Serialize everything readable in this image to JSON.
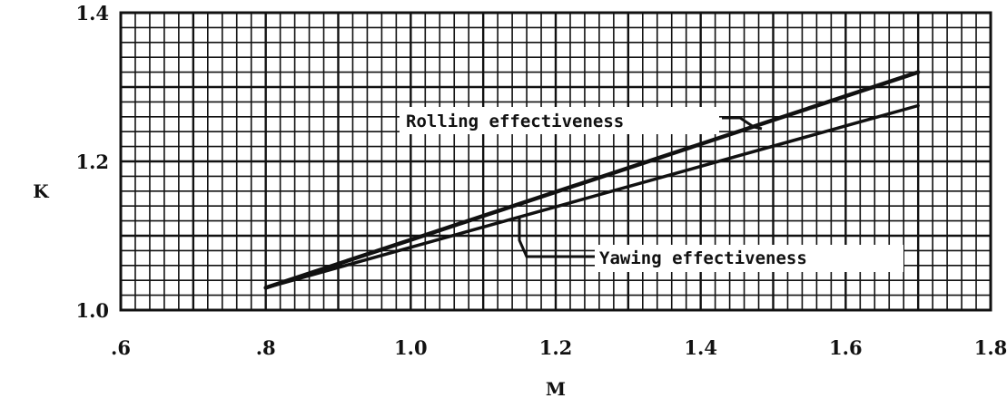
{
  "chart_data": {
    "type": "line",
    "title": "",
    "xlabel": "M",
    "ylabel": "K",
    "xlim": [
      0.6,
      1.8
    ],
    "ylim": [
      1.0,
      1.4
    ],
    "x_ticks": [
      ".6",
      ".8",
      "1.0",
      "1.2",
      "1.4",
      "1.6",
      "1.8"
    ],
    "y_ticks": [
      "1.0",
      "1.2",
      "1.4"
    ],
    "grid": true,
    "legend": "none",
    "series": [
      {
        "name": "Rolling effectiveness",
        "x": [
          0.8,
          1.7
        ],
        "y": [
          1.03,
          1.32
        ]
      },
      {
        "name": "Yawing effectiveness",
        "x": [
          0.8,
          1.7
        ],
        "y": [
          1.03,
          1.275
        ]
      }
    ],
    "annotations": [
      {
        "text": "Rolling effectiveness",
        "series": 0
      },
      {
        "text": "Yawing effectiveness",
        "series": 1
      }
    ]
  }
}
